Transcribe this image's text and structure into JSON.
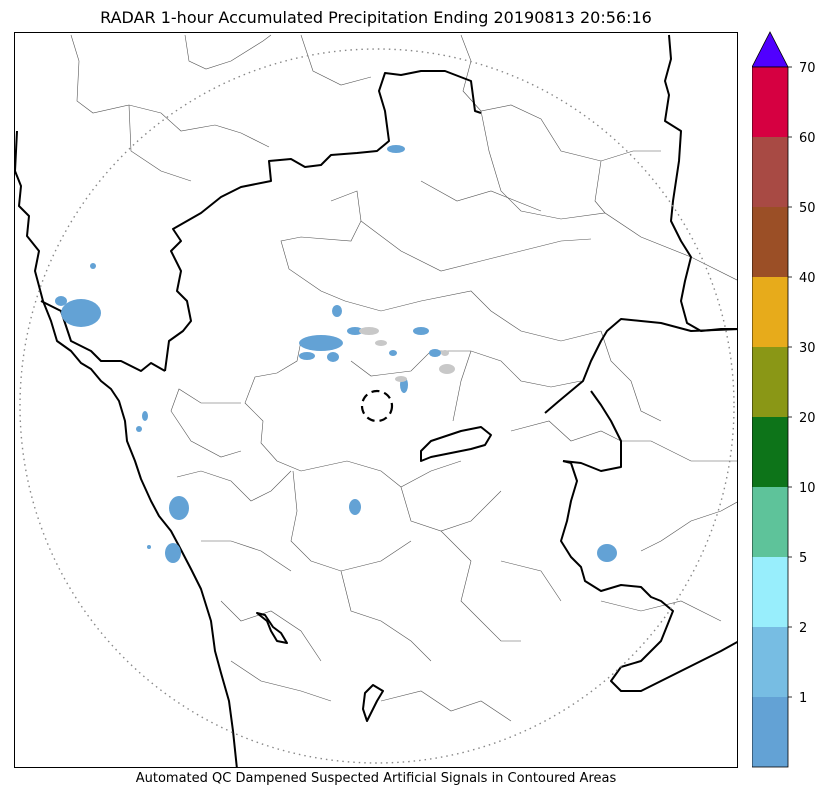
{
  "title": "RADAR 1-hour Accumulated Precipitation Ending 20190813 20:56:16",
  "caption": "Automated QC Dampened Suspected Artificial Signals in Contoured Areas",
  "colorbar": {
    "boundaries": [
      0,
      1,
      2,
      5,
      10,
      20,
      30,
      40,
      50,
      60,
      70
    ],
    "tick_labels": [
      "1",
      "2",
      "5",
      "10",
      "20",
      "30",
      "40",
      "50",
      "60",
      "70"
    ],
    "colors": [
      "#63a2d5",
      "#77bde3",
      "#98eefc",
      "#5ec39a",
      "#0d7419",
      "#8a9716",
      "#e7ab1b",
      "#9b4f26",
      "#a84a44",
      "#d60041"
    ],
    "extend_color": "#5000ff"
  },
  "map": {
    "precip_color": "#63a2d5",
    "qc_color": "#c8c8c8"
  }
}
